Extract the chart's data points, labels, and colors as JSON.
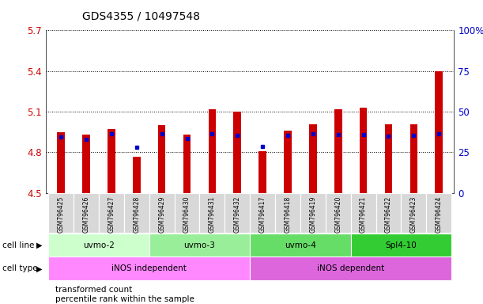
{
  "title": "GDS4355 / 10497548",
  "samples": [
    "GSM796425",
    "GSM796426",
    "GSM796427",
    "GSM796428",
    "GSM796429",
    "GSM796430",
    "GSM796431",
    "GSM796432",
    "GSM796417",
    "GSM796418",
    "GSM796419",
    "GSM796420",
    "GSM796421",
    "GSM796422",
    "GSM796423",
    "GSM796424"
  ],
  "transformed_counts": [
    4.95,
    4.93,
    4.97,
    4.77,
    5.0,
    4.93,
    5.12,
    5.1,
    4.81,
    4.96,
    5.01,
    5.12,
    5.13,
    5.01,
    5.01,
    5.4
  ],
  "percentile_y": [
    4.915,
    4.895,
    4.935,
    4.84,
    4.935,
    4.905,
    4.935,
    4.925,
    4.845,
    4.925,
    4.935,
    4.93,
    4.93,
    4.92,
    4.925,
    4.935
  ],
  "bar_color": "#cc0000",
  "dot_color": "#0000cc",
  "ymin": 4.5,
  "ymax": 5.7,
  "yticks": [
    4.5,
    4.8,
    5.1,
    5.4,
    5.7
  ],
  "ytick_labels": [
    "4.5",
    "4.8",
    "5.1",
    "5.4",
    "5.7"
  ],
  "right_ytick_positions": [
    4.5,
    4.8,
    5.1,
    5.4,
    5.7
  ],
  "right_ytick_labels": [
    "0",
    "25",
    "50",
    "75",
    "100%"
  ],
  "cell_lines": [
    {
      "label": "uvmo-2",
      "start": 0,
      "end": 3,
      "color": "#ccffcc"
    },
    {
      "label": "uvmo-3",
      "start": 4,
      "end": 7,
      "color": "#99ee99"
    },
    {
      "label": "uvmo-4",
      "start": 8,
      "end": 11,
      "color": "#66dd66"
    },
    {
      "label": "Spl4-10",
      "start": 12,
      "end": 15,
      "color": "#33cc33"
    }
  ],
  "cell_types": [
    {
      "label": "iNOS independent",
      "start": 0,
      "end": 7,
      "color": "#ff88ff"
    },
    {
      "label": "iNOS dependent",
      "start": 8,
      "end": 15,
      "color": "#dd66dd"
    }
  ],
  "legend_bar_label": "transformed count",
  "legend_dot_label": "percentile rank within the sample",
  "cell_line_label": "cell line",
  "cell_type_label": "cell type",
  "bar_width": 0.3
}
